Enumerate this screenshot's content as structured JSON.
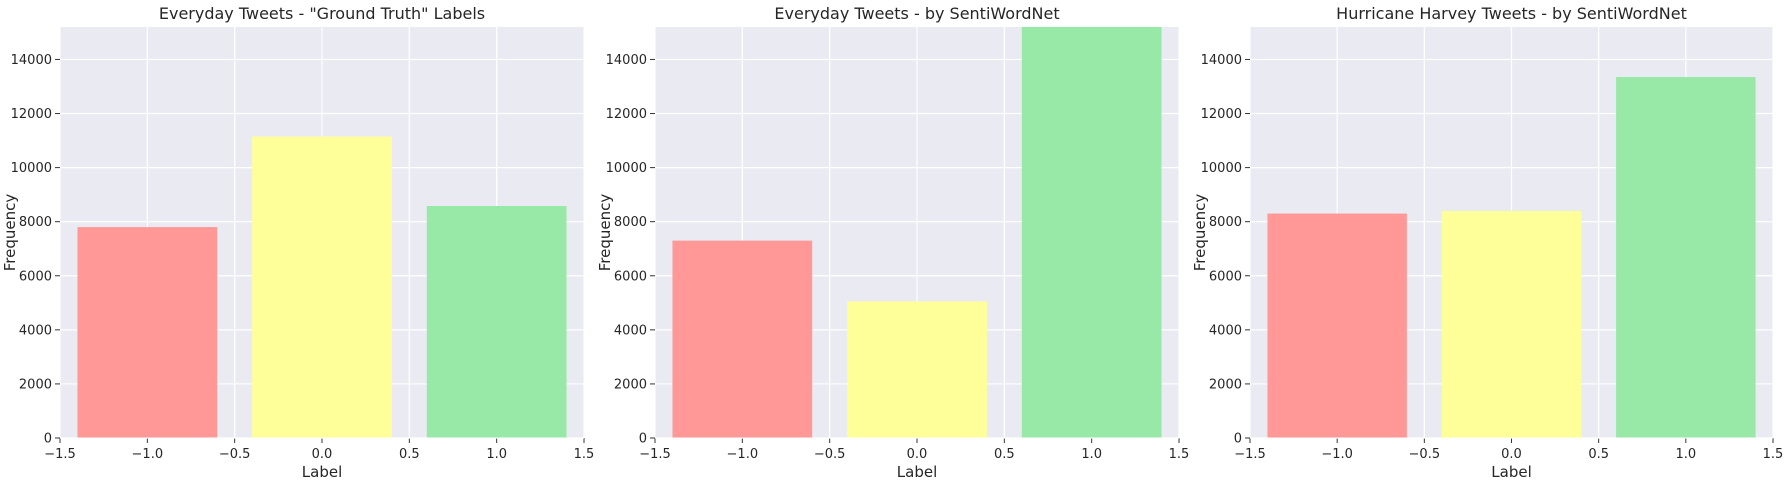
{
  "chart_data": [
    {
      "type": "bar",
      "title": "Everyday Tweets - \"Ground Truth\" Labels",
      "xlabel": "Label",
      "ylabel": "Frequency",
      "x": [
        -1.0,
        0.0,
        1.0
      ],
      "values": [
        7800,
        11150,
        8580
      ],
      "colors": [
        "#ff9896",
        "#ffff99",
        "#98e8a8"
      ],
      "xlim": [
        -1.5,
        1.5
      ],
      "ylim": [
        0,
        15200
      ],
      "xticks": [
        "−1.5",
        "−1.0",
        "−0.5",
        "0.0",
        "0.5",
        "1.0",
        "1.5"
      ],
      "yticks": [
        "0",
        "2000",
        "4000",
        "6000",
        "8000",
        "10000",
        "12000",
        "14000"
      ],
      "grid": true
    },
    {
      "type": "bar",
      "title": "Everyday Tweets - by SentiWordNet",
      "xlabel": "Label",
      "ylabel": "Frequency",
      "x": [
        -1.0,
        0.0,
        1.0
      ],
      "values": [
        7300,
        5050,
        15200
      ],
      "colors": [
        "#ff9896",
        "#ffff99",
        "#98e8a8"
      ],
      "xlim": [
        -1.5,
        1.5
      ],
      "ylim": [
        0,
        15200
      ],
      "xticks": [
        "−1.5",
        "−1.0",
        "−0.5",
        "0.0",
        "0.5",
        "1.0",
        "1.5"
      ],
      "yticks": [
        "0",
        "2000",
        "4000",
        "6000",
        "8000",
        "10000",
        "12000",
        "14000"
      ],
      "grid": true
    },
    {
      "type": "bar",
      "title": "Hurricane Harvey Tweets - by SentiWordNet",
      "xlabel": "Label",
      "ylabel": "Frequency",
      "x": [
        -1.0,
        0.0,
        1.0
      ],
      "values": [
        8300,
        8400,
        13350
      ],
      "colors": [
        "#ff9896",
        "#ffff99",
        "#98e8a8"
      ],
      "xlim": [
        -1.5,
        1.5
      ],
      "ylim": [
        0,
        15200
      ],
      "xticks": [
        "−1.5",
        "−1.0",
        "−0.5",
        "0.0",
        "0.5",
        "1.0",
        "1.5"
      ],
      "yticks": [
        "0",
        "2000",
        "4000",
        "6000",
        "8000",
        "10000",
        "12000",
        "14000"
      ],
      "grid": true
    }
  ]
}
